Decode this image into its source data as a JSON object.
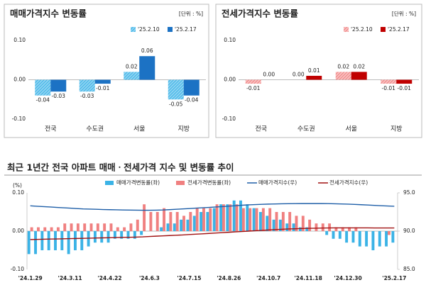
{
  "chart_data": [
    {
      "type": "grouped_bar",
      "title": "매매가격지수 변동률",
      "unit": "[단위 : %]",
      "categories": [
        "전국",
        "수도권",
        "서울",
        "지방"
      ],
      "series": [
        {
          "name": "'25.2.10",
          "color": "#3bb3e6",
          "hatch": true,
          "values": [
            -0.04,
            -0.03,
            0.02,
            -0.05
          ],
          "value_labels": [
            "-0.04",
            "-0.03",
            "0.02",
            "-0.05"
          ]
        },
        {
          "name": "'25.2.17",
          "color": "#1c72c4",
          "hatch": false,
          "values": [
            -0.03,
            -0.01,
            0.06,
            -0.04
          ],
          "value_labels": [
            "-0.03",
            "-0.01",
            "0.06",
            "-0.04"
          ]
        }
      ],
      "ylim": [
        -0.1,
        0.1
      ],
      "yticks": [
        {
          "value": -0.1,
          "label": "-0.10"
        },
        {
          "value": 0,
          "label": "0.00"
        },
        {
          "value": 0.1,
          "label": "0.10"
        }
      ]
    },
    {
      "type": "grouped_bar",
      "title": "전세가격지수 변동률",
      "unit": "[단위 : %]",
      "categories": [
        "전국",
        "수도권",
        "서울",
        "지방"
      ],
      "series": [
        {
          "name": "'25.2.10",
          "color": "#f08080",
          "hatch": true,
          "values": [
            -0.01,
            0,
            0.02,
            -0.01
          ],
          "value_labels": [
            "-0.01",
            "0.00",
            "0.02",
            "-0.01"
          ]
        },
        {
          "name": "'25.2.17",
          "color": "#c00000",
          "hatch": false,
          "values": [
            0,
            0.01,
            0.02,
            -0.01
          ],
          "value_labels": [
            "0.00",
            "0.01",
            "0.02",
            "-0.01"
          ]
        }
      ],
      "ylim": [
        -0.1,
        0.1
      ],
      "yticks": [
        {
          "value": -0.1,
          "label": "-0.10"
        },
        {
          "value": 0,
          "label": "0.00"
        },
        {
          "value": 0.1,
          "label": "0.10"
        }
      ]
    },
    {
      "type": "combo",
      "title": "최근 1년간 전국 아파트 매매ㆍ전세가격 지수 및 변동률 추이",
      "y_label": "(%)",
      "categories": [
        "'24.1.29",
        null,
        null,
        null,
        null,
        null,
        "'24.3.11",
        null,
        null,
        null,
        null,
        null,
        "'24.4.22",
        null,
        null,
        null,
        null,
        null,
        "'24.6.3",
        null,
        null,
        null,
        null,
        null,
        "'24.7.15",
        null,
        null,
        null,
        null,
        null,
        "'24.8.26",
        null,
        null,
        null,
        null,
        null,
        "'24.10.7",
        null,
        null,
        null,
        null,
        null,
        "'24.11.18",
        null,
        null,
        null,
        null,
        null,
        "'24.12.30",
        null,
        null,
        null,
        null,
        null,
        null,
        "'25.2.17"
      ],
      "series": [
        {
          "name": "매매가격변동률(좌)",
          "kind": "bar",
          "color": "#3bb3e6",
          "values": [
            -0.06,
            -0.06,
            -0.05,
            -0.05,
            -0.05,
            -0.05,
            -0.06,
            -0.05,
            -0.05,
            -0.04,
            -0.03,
            -0.03,
            -0.03,
            -0.02,
            -0.02,
            -0.02,
            -0.02,
            -0.01,
            0,
            0,
            0.01,
            0.02,
            0.02,
            0.03,
            0.03,
            0.04,
            0.05,
            0.05,
            0.06,
            0.07,
            0.07,
            0.08,
            0.08,
            0.07,
            0.06,
            0.05,
            0.04,
            0.03,
            0.03,
            0.02,
            0.02,
            0.01,
            0.01,
            0,
            0,
            -0.01,
            -0.02,
            -0.02,
            -0.03,
            -0.03,
            -0.04,
            -0.04,
            -0.05,
            -0.04,
            -0.04,
            -0.03
          ]
        },
        {
          "name": "전세가격변동률(좌)",
          "kind": "bar",
          "color": "#f08080",
          "values": [
            0.01,
            0.01,
            0.01,
            0.01,
            0.01,
            0.02,
            0.02,
            0.02,
            0.02,
            0.02,
            0.02,
            0.02,
            0.02,
            0.01,
            0.01,
            0.02,
            0.03,
            0.07,
            0.05,
            0.05,
            0.06,
            0.05,
            0.05,
            0.04,
            0.05,
            0.06,
            0.06,
            0.06,
            0.07,
            0.07,
            0.07,
            0.07,
            0.06,
            0.06,
            0.06,
            0.06,
            0.06,
            0.05,
            0.05,
            0.05,
            0.04,
            0.04,
            0.03,
            0.02,
            0.02,
            0.02,
            0.01,
            0.01,
            0.01,
            0.01,
            0,
            0,
            0,
            0,
            -0.01,
            0
          ]
        },
        {
          "name": "매매가격지수(우)",
          "kind": "line",
          "axis": "y2",
          "color": "#1f5fa8",
          "values": [
            93.3,
            93.25,
            93.2,
            93.15,
            93.1,
            93.05,
            93.0,
            92.95,
            92.9,
            92.88,
            92.85,
            92.82,
            92.8,
            92.78,
            92.76,
            92.75,
            92.74,
            92.73,
            92.73,
            92.74,
            92.76,
            92.8,
            92.85,
            92.9,
            92.95,
            93.0,
            93.05,
            93.1,
            93.15,
            93.2,
            93.26,
            93.32,
            93.38,
            93.43,
            93.47,
            93.5,
            93.53,
            93.55,
            93.57,
            93.58,
            93.59,
            93.6,
            93.6,
            93.6,
            93.6,
            93.59,
            93.57,
            93.55,
            93.52,
            93.49,
            93.45,
            93.41,
            93.36,
            93.32,
            93.28,
            93.25
          ]
        },
        {
          "name": "전세가격지수(우)",
          "kind": "line",
          "axis": "y2",
          "color": "#a01010",
          "values": [
            88.9,
            88.92,
            88.94,
            88.96,
            88.98,
            89.0,
            89.02,
            89.04,
            89.06,
            89.08,
            89.1,
            89.12,
            89.14,
            89.16,
            89.18,
            89.2,
            89.22,
            89.25,
            89.3,
            89.34,
            89.38,
            89.42,
            89.46,
            89.5,
            89.55,
            89.6,
            89.65,
            89.7,
            89.75,
            89.8,
            89.85,
            89.9,
            89.95,
            90.0,
            90.05,
            90.1,
            90.15,
            90.2,
            90.24,
            90.28,
            90.31,
            90.34,
            90.36,
            90.38,
            90.4,
            90.41,
            90.42,
            90.42,
            90.42,
            90.42,
            90.42,
            90.42,
            90.41,
            90.41,
            90.41,
            90.41
          ]
        }
      ],
      "ylim": [
        -0.1,
        0.1
      ],
      "yticks": [
        {
          "value": -0.1,
          "label": "-0.10"
        },
        {
          "value": 0,
          "label": "0.00"
        },
        {
          "value": 0.1,
          "label": "0.10"
        }
      ],
      "y2lim": [
        85,
        95
      ],
      "y2ticks": [
        {
          "value": 85,
          "label": "85.0"
        },
        {
          "value": 90,
          "label": "90.0"
        },
        {
          "value": 95,
          "label": "95.0"
        }
      ]
    }
  ]
}
